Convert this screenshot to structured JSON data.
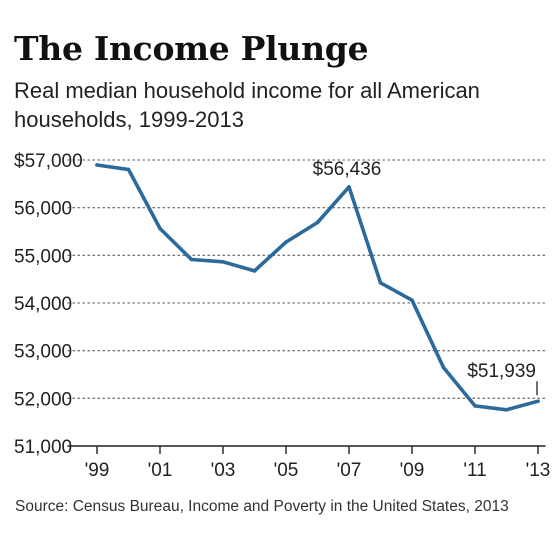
{
  "title": "The Income Plunge",
  "subtitle": "Real median household income for all American households, 1999-2013",
  "source": "Source: Census Bureau, Income and Poverty in the United States, 2013",
  "colors": {
    "line": "#2b6a9a",
    "grid": "#777777",
    "text": "#222222"
  },
  "chart_data": {
    "type": "line",
    "title": "The Income Plunge",
    "subtitle": "Real median household income for all American households, 1999-2013",
    "x": [
      1999,
      2000,
      2001,
      2002,
      2003,
      2004,
      2005,
      2006,
      2007,
      2008,
      2009,
      2010,
      2011,
      2012,
      2013
    ],
    "series": [
      {
        "values": [
          56895,
          56800,
          55562,
          54913,
          54865,
          54674,
          55278,
          55689,
          56436,
          54423,
          54059,
          52646,
          51842,
          51759,
          51939
        ]
      }
    ],
    "xlim": [
      1999,
      2013
    ],
    "ylim": [
      51000,
      57000
    ],
    "y_ticks": [
      51000,
      52000,
      53000,
      54000,
      55000,
      56000,
      57000
    ],
    "y_tick_labels": [
      "51,000",
      "52,000",
      "53,000",
      "54,000",
      "55,000",
      "56,000",
      "$57,000"
    ],
    "x_ticks": [
      1999,
      2001,
      2003,
      2005,
      2007,
      2009,
      2011,
      2013
    ],
    "x_tick_labels": [
      "'99",
      "'01",
      "'03",
      "'05",
      "'07",
      "'09",
      "'11",
      "'13"
    ],
    "grid": "horizontal dotted",
    "annotations": [
      {
        "x": 2007,
        "y": 56436,
        "text": "$56,436"
      },
      {
        "x": 2013,
        "y": 51939,
        "text": "$51,939"
      }
    ]
  }
}
